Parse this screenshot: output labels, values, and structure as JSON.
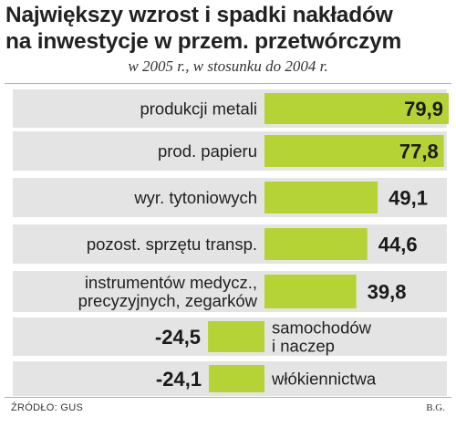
{
  "chart_data": {
    "type": "bar",
    "orientation": "horizontal",
    "title_lines": [
      "Największy wzrost i spadki nakładów",
      "na inwestycje w przem. przetwórczym"
    ],
    "subtitle": "w 2005 r., w stosunku do 2004 r.",
    "categories": [
      [
        "produkcji metali"
      ],
      [
        "prod. papieru"
      ],
      [
        "wyr. tytoniowych"
      ],
      [
        "pozost. sprzętu transp."
      ],
      [
        "instrumentów medycz.,",
        "precyzyjnych, zegarków"
      ],
      [
        "samochodów",
        "i naczep"
      ],
      [
        "włókiennictwa"
      ]
    ],
    "values": [
      79.9,
      77.8,
      49.1,
      44.6,
      39.8,
      -24.5,
      -24.1
    ],
    "value_labels": [
      "79,9",
      "77,8",
      "49,1",
      "44,6",
      "39,8",
      "-24,5",
      "-24,1"
    ],
    "bar_color": "#b5d334",
    "row_color": "#e4e4e4"
  },
  "footer": {
    "source": "ŹRÓDŁO: GUS",
    "author": "B.G."
  }
}
